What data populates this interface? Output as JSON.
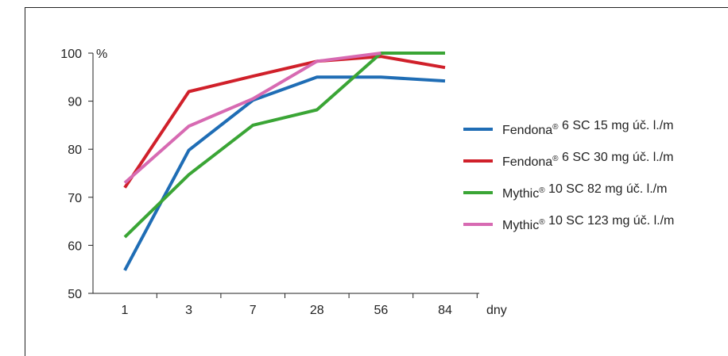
{
  "chart_data": {
    "type": "line",
    "title": "",
    "ylabel": "%",
    "xlabel": "dny",
    "categories": [
      "1",
      "3",
      "7",
      "28",
      "56",
      "84"
    ],
    "ylim": [
      50,
      100
    ],
    "yticks": [
      50,
      60,
      70,
      80,
      90,
      100
    ],
    "grid": false,
    "legend_position": "right",
    "series": [
      {
        "name": "Fendona® 6 SC 15 mg úč. l./m",
        "color": "#1f6db5",
        "values": [
          54.8,
          79.8,
          90.2,
          95.0,
          95.0,
          94.2
        ]
      },
      {
        "name": "Fendona® 6 SC 30 mg úč. l./m",
        "color": "#d0202a",
        "values": [
          72.0,
          92.0,
          95.2,
          98.3,
          99.3,
          97.0
        ]
      },
      {
        "name": "Mythic® 10 SC 82 mg úč. l./m",
        "color": "#3aa535",
        "values": [
          61.7,
          74.7,
          85.0,
          88.2,
          100.0,
          100.0
        ]
      },
      {
        "name": "Mythic® 10 SC 123 mg úč. l./m",
        "color": "#d76ab2",
        "values": [
          73.0,
          84.8,
          90.5,
          98.3,
          100.0,
          null
        ]
      }
    ]
  }
}
